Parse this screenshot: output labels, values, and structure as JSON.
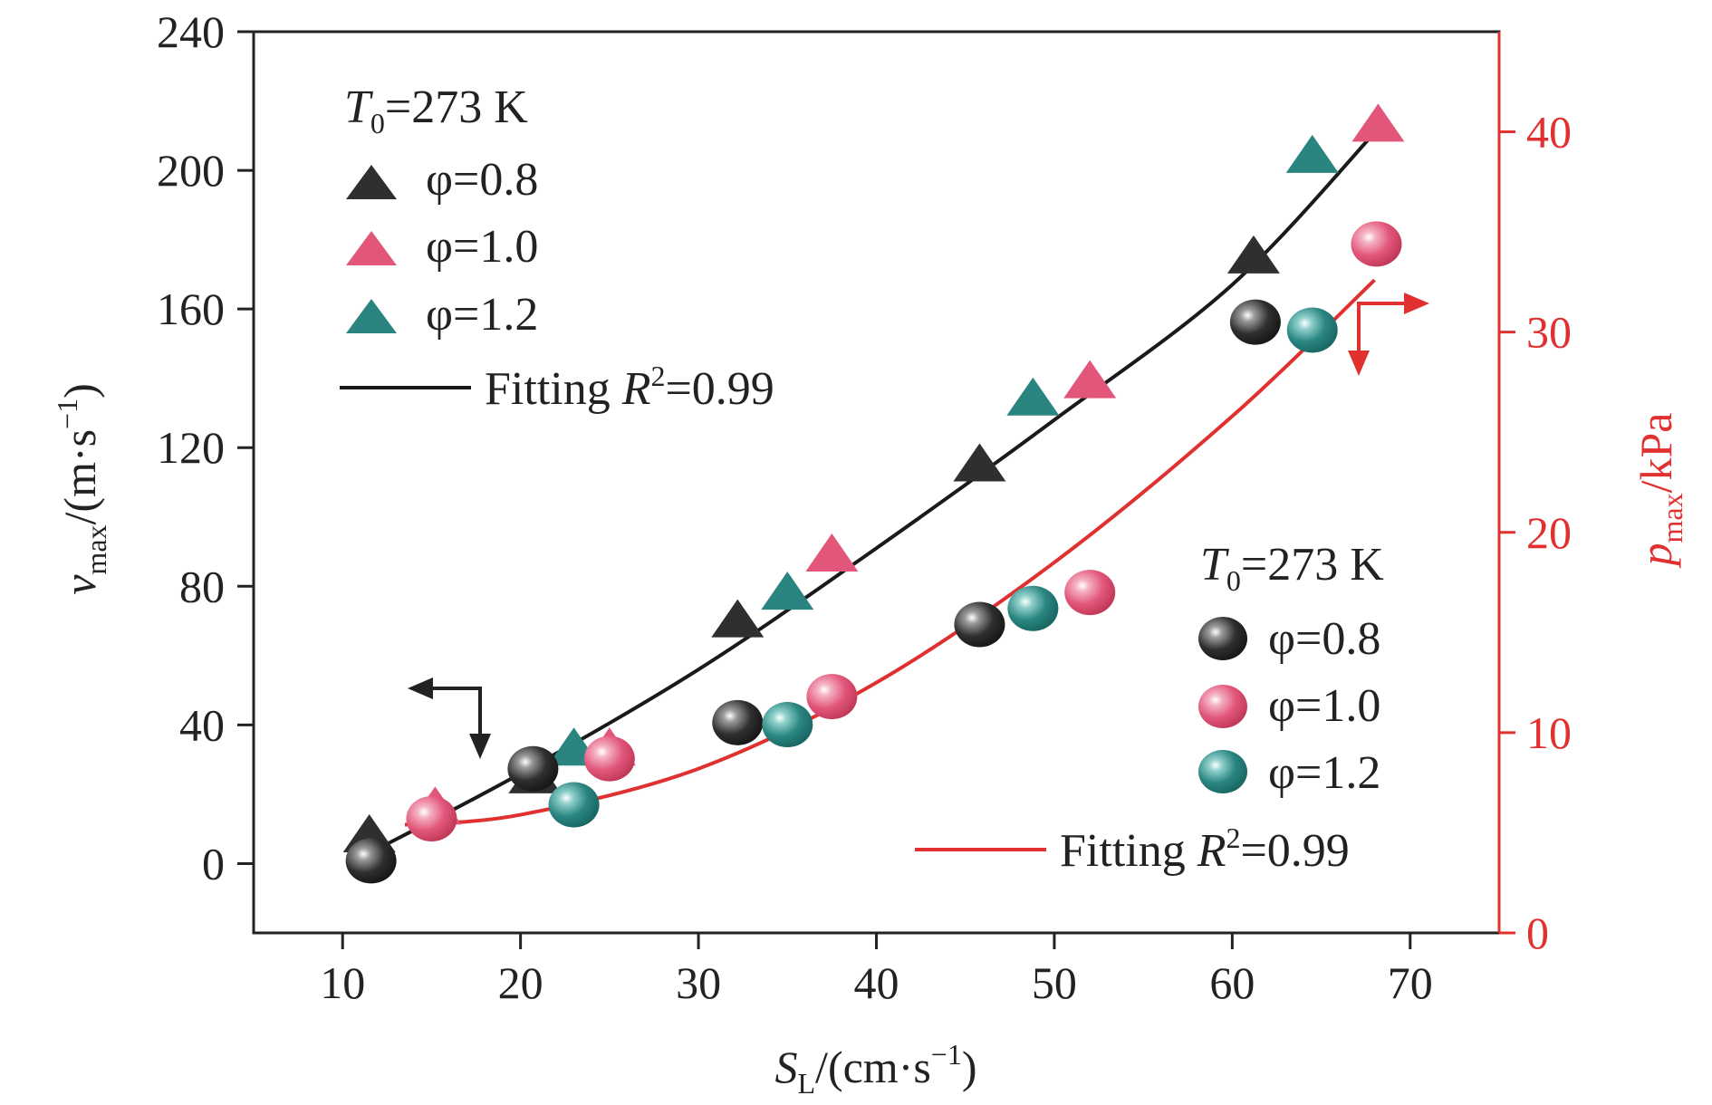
{
  "colors": {
    "black_series": "#2f2f2f",
    "pink_series": "#e2567a",
    "teal_series": "#2a8580",
    "red_axis": "#e03030",
    "black_fit": "#1a1a1a",
    "red_fit": "#e03030"
  },
  "chart_data": {
    "type": "scatter",
    "x_axis": {
      "label_main": "S",
      "label_sub": "L",
      "label_rest": "/(cm·s",
      "label_sup": "−1",
      "label_close": ")",
      "range": [
        5,
        75
      ],
      "ticks": [
        10,
        20,
        30,
        40,
        50,
        60,
        70
      ],
      "tick_labels": [
        "10",
        "20",
        "30",
        "40",
        "50",
        "60",
        "70"
      ]
    },
    "y_left": {
      "label_main": "v",
      "label_sub": "max",
      "label_rest": "/(m·s",
      "label_sup": "−1",
      "label_close": ")",
      "range": [
        -20,
        240
      ],
      "ticks": [
        0,
        40,
        80,
        120,
        160,
        200,
        240
      ],
      "tick_labels": [
        "0",
        "40",
        "80",
        "120",
        "160",
        "200",
        "240"
      ]
    },
    "y_right": {
      "label_main": "p",
      "label_sub": "max",
      "label_rest": "/kPa",
      "range": [
        0,
        45
      ],
      "ticks": [
        0,
        10,
        20,
        30,
        40
      ],
      "tick_labels": [
        "0",
        "10",
        "20",
        "30",
        "40"
      ]
    },
    "series": [
      {
        "name": "φ=0.8",
        "axis": "left",
        "marker": "triangle",
        "color": "#2f2f2f",
        "points": [
          [
            11.5,
            7
          ],
          [
            20.8,
            24
          ],
          [
            32.2,
            69
          ],
          [
            45.8,
            114
          ],
          [
            61.2,
            174
          ]
        ]
      },
      {
        "name": "φ=1.0",
        "axis": "left",
        "marker": "triangle",
        "color": "#e2567a",
        "points": [
          [
            15.2,
            15
          ],
          [
            25.0,
            32
          ],
          [
            37.5,
            88
          ],
          [
            52.0,
            138
          ],
          [
            68.2,
            212
          ]
        ]
      },
      {
        "name": "φ=1.2",
        "axis": "left",
        "marker": "triangle",
        "color": "#2a8580",
        "points": [
          [
            23.0,
            32
          ],
          [
            35.0,
            77
          ],
          [
            48.8,
            133
          ],
          [
            64.5,
            203
          ]
        ]
      },
      {
        "name": "φ=0.8",
        "axis": "right",
        "marker": "sphere",
        "color": "#2f2f2f",
        "points": [
          [
            11.6,
            3.6
          ],
          [
            20.7,
            8.2
          ],
          [
            32.2,
            10.5
          ],
          [
            45.8,
            15.4
          ],
          [
            61.3,
            30.5
          ]
        ]
      },
      {
        "name": "φ=1.0",
        "axis": "right",
        "marker": "sphere",
        "color": "#e2567a",
        "points": [
          [
            15.0,
            5.7
          ],
          [
            25.0,
            8.7
          ],
          [
            37.5,
            11.8
          ],
          [
            52.0,
            17.0
          ],
          [
            68.1,
            34.4
          ]
        ]
      },
      {
        "name": "φ=1.2",
        "axis": "right",
        "marker": "sphere",
        "color": "#2a8580",
        "points": [
          [
            23.0,
            6.4
          ],
          [
            35.0,
            10.4
          ],
          [
            48.8,
            16.2
          ],
          [
            64.5,
            30.1
          ]
        ]
      }
    ],
    "fits": [
      {
        "axis": "left",
        "color": "#1a1a1a",
        "x_range": [
          11.5,
          68.2
        ],
        "points": [
          [
            11.5,
            3
          ],
          [
            20,
            26
          ],
          [
            30,
            56
          ],
          [
            40,
            91
          ],
          [
            50,
            128
          ],
          [
            60,
            167
          ],
          [
            68.2,
            212
          ]
        ]
      },
      {
        "axis": "right",
        "color": "#e03030",
        "x_range": [
          13.5,
          68.0
        ],
        "points": [
          [
            13.5,
            5.4
          ],
          [
            20,
            5.9
          ],
          [
            30,
            8.2
          ],
          [
            40,
            12.5
          ],
          [
            50,
            18.5
          ],
          [
            60,
            25.8
          ],
          [
            68,
            32.6
          ]
        ]
      }
    ],
    "legends": {
      "triangles": {
        "header_main": "T",
        "header_sub": "0",
        "header_rest": "=273 K",
        "items": [
          "φ=0.8",
          "φ=1.0",
          "φ=1.2"
        ],
        "fit_label": "Fitting ",
        "fit_r": "R",
        "fit_sup": "2",
        "fit_value": "=0.99"
      },
      "spheres": {
        "header_main": "T",
        "header_sub": "0",
        "header_rest": "=273 K",
        "items": [
          "φ=0.8",
          "φ=1.0",
          "φ=1.2"
        ],
        "fit_label": "Fitting ",
        "fit_r": "R",
        "fit_sup": "2",
        "fit_value": "=0.99"
      }
    }
  }
}
